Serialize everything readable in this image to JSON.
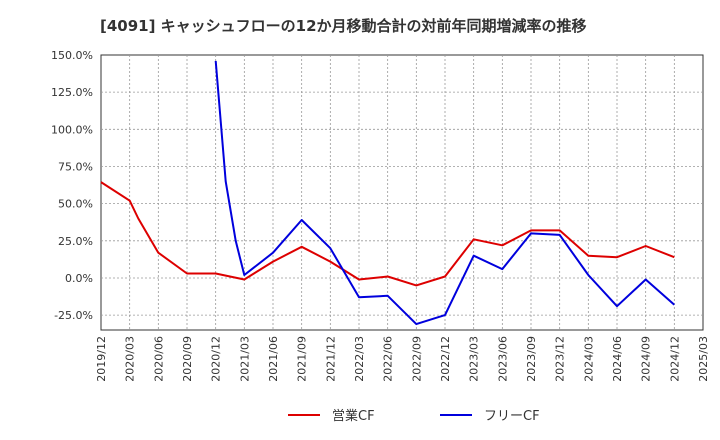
{
  "chart_data": {
    "type": "line",
    "title": "[4091]  キャッシュフローの12か月移動合計の対前年同期増減率の推移",
    "xlabel": "",
    "ylabel": "",
    "ylim": [
      -35,
      150
    ],
    "y_ticks": [
      -25,
      0,
      25,
      50,
      75,
      100,
      125,
      150
    ],
    "y_tick_labels": [
      "-25.0%",
      "0.0%",
      "25.0%",
      "50.0%",
      "75.0%",
      "100.0%",
      "125.0%",
      "150.0%"
    ],
    "x_tick_labels": [
      "2019/12",
      "2020/03",
      "2020/06",
      "2020/09",
      "2020/12",
      "2021/03",
      "2021/06",
      "2021/09",
      "2021/12",
      "2022/03",
      "2022/06",
      "2022/09",
      "2022/12",
      "2023/03",
      "2023/06",
      "2023/09",
      "2023/12",
      "2024/03",
      "2024/06",
      "2024/09",
      "2024/12",
      "2025/03"
    ],
    "grid": true,
    "legend_position": "bottom",
    "series": [
      {
        "name": "営業CF",
        "color": "#dd0000",
        "points": [
          [
            0,
            64.5
          ],
          [
            1,
            52
          ],
          [
            1.3,
            40
          ],
          [
            2,
            17
          ],
          [
            3,
            3
          ],
          [
            4,
            3
          ],
          [
            5,
            -1
          ],
          [
            6,
            11
          ],
          [
            7,
            21
          ],
          [
            8,
            11
          ],
          [
            9,
            -1
          ],
          [
            10,
            1
          ],
          [
            11,
            -5
          ],
          [
            12,
            1
          ],
          [
            13,
            26
          ],
          [
            14,
            22
          ],
          [
            15,
            32
          ],
          [
            16,
            32
          ],
          [
            17,
            15
          ],
          [
            18,
            14
          ],
          [
            19,
            21.5
          ],
          [
            20,
            14
          ]
        ]
      },
      {
        "name": "フリーCF",
        "color": "#0000dd",
        "points": [
          [
            4,
            146
          ],
          [
            4.35,
            65
          ],
          [
            4.7,
            25
          ],
          [
            5,
            2
          ],
          [
            6,
            17
          ],
          [
            7,
            39
          ],
          [
            8,
            20
          ],
          [
            9,
            -13
          ],
          [
            10,
            -12
          ],
          [
            11,
            -31
          ],
          [
            12,
            -25
          ],
          [
            13,
            15
          ],
          [
            14,
            6
          ],
          [
            15,
            30
          ],
          [
            16,
            29
          ],
          [
            17,
            2
          ],
          [
            18,
            -19
          ],
          [
            19,
            -1
          ],
          [
            20,
            -18
          ]
        ]
      }
    ]
  }
}
